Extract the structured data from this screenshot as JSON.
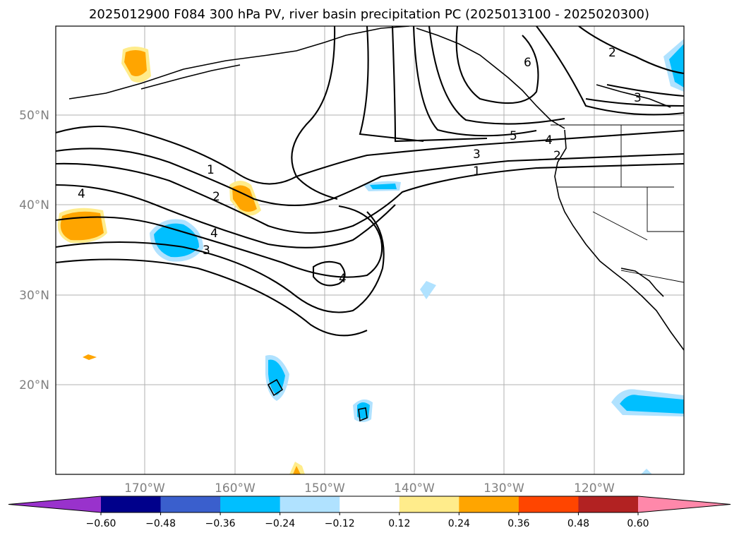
{
  "title": "2025012900 F084 300 hPa PV, river basin precipitation PC (2025013100 - 2025020300)",
  "map": {
    "lat_labels": [
      "50°N",
      "40°N",
      "30°N",
      "20°N"
    ],
    "lon_labels": [
      "170°W",
      "160°W",
      "150°W",
      "140°W",
      "130°W",
      "120°W"
    ],
    "pv_contour_labels": [
      "1",
      "2",
      "3",
      "4",
      "5",
      "6",
      "1",
      "2",
      "3",
      "4",
      "4",
      "2",
      "3",
      "4"
    ]
  },
  "colorbar": {
    "colors": [
      "#9932CC",
      "#00008B",
      "#3A5FCD",
      "#00BFFF",
      "#B0E2FF",
      "#FFFFFF",
      "#FFEC8B",
      "#FFA500",
      "#FF4500",
      "#B22222",
      "#FF88AA"
    ],
    "tick_labels": [
      "−0.60",
      "−0.48",
      "−0.36",
      "−0.24",
      "−0.12",
      "0.12",
      "0.24",
      "0.36",
      "0.48",
      "0.60"
    ]
  }
}
